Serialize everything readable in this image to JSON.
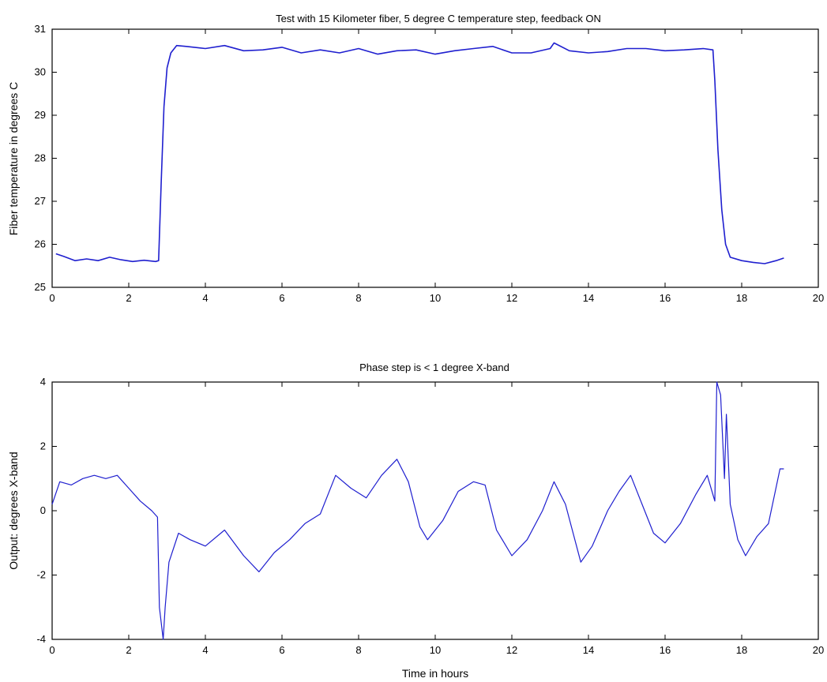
{
  "chart_data": [
    {
      "type": "line",
      "title": "Test with 15 Kilometer fiber, 5 degree C temperature step, feedback ON",
      "xlabel": "",
      "ylabel": "Fiber temperature in degrees C",
      "xlim": [
        0,
        20
      ],
      "ylim": [
        25,
        31
      ],
      "xticks": [
        0,
        2,
        4,
        6,
        8,
        10,
        12,
        14,
        16,
        18,
        20
      ],
      "yticks": [
        25,
        26,
        27,
        28,
        29,
        30,
        31
      ],
      "grid": false,
      "line_color": "#1f1fcf",
      "series": [
        {
          "values": [
            [
              0.1,
              25.78
            ],
            [
              0.3,
              25.72
            ],
            [
              0.6,
              25.62
            ],
            [
              0.9,
              25.66
            ],
            [
              1.2,
              25.62
            ],
            [
              1.5,
              25.7
            ],
            [
              1.8,
              25.64
            ],
            [
              2.1,
              25.6
            ],
            [
              2.4,
              25.63
            ],
            [
              2.7,
              25.6
            ],
            [
              2.78,
              25.62
            ],
            [
              2.85,
              27.5
            ],
            [
              2.92,
              29.2
            ],
            [
              3.0,
              30.1
            ],
            [
              3.1,
              30.45
            ],
            [
              3.25,
              30.62
            ],
            [
              3.5,
              30.6
            ],
            [
              4.0,
              30.55
            ],
            [
              4.5,
              30.62
            ],
            [
              5.0,
              30.5
            ],
            [
              5.5,
              30.52
            ],
            [
              6.0,
              30.58
            ],
            [
              6.5,
              30.45
            ],
            [
              7.0,
              30.52
            ],
            [
              7.5,
              30.45
            ],
            [
              8.0,
              30.55
            ],
            [
              8.5,
              30.42
            ],
            [
              9.0,
              30.5
            ],
            [
              9.5,
              30.52
            ],
            [
              10.0,
              30.42
            ],
            [
              10.5,
              30.5
            ],
            [
              11.0,
              30.55
            ],
            [
              11.5,
              30.6
            ],
            [
              12.0,
              30.45
            ],
            [
              12.5,
              30.45
            ],
            [
              13.0,
              30.55
            ],
            [
              13.1,
              30.68
            ],
            [
              13.5,
              30.5
            ],
            [
              14.0,
              30.45
            ],
            [
              14.5,
              30.48
            ],
            [
              15.0,
              30.55
            ],
            [
              15.5,
              30.55
            ],
            [
              16.0,
              30.5
            ],
            [
              16.5,
              30.52
            ],
            [
              17.0,
              30.55
            ],
            [
              17.25,
              30.52
            ],
            [
              17.3,
              29.8
            ],
            [
              17.38,
              28.2
            ],
            [
              17.48,
              26.8
            ],
            [
              17.58,
              26.0
            ],
            [
              17.7,
              25.7
            ],
            [
              18.0,
              25.62
            ],
            [
              18.3,
              25.58
            ],
            [
              18.6,
              25.55
            ],
            [
              18.9,
              25.62
            ],
            [
              19.1,
              25.68
            ]
          ]
        }
      ]
    },
    {
      "type": "line",
      "title": "Phase step is < 1 degree X-band",
      "xlabel": "Time in hours",
      "ylabel": "Output: degrees X-band",
      "xlim": [
        0,
        20
      ],
      "ylim": [
        -4,
        4
      ],
      "xticks": [
        0,
        2,
        4,
        6,
        8,
        10,
        12,
        14,
        16,
        18,
        20
      ],
      "yticks": [
        -4,
        -2,
        0,
        2,
        4
      ],
      "grid": false,
      "line_color": "#1f1fcf",
      "series": [
        {
          "values": [
            [
              0.0,
              0.2
            ],
            [
              0.2,
              0.9
            ],
            [
              0.5,
              0.8
            ],
            [
              0.8,
              1.0
            ],
            [
              1.1,
              1.1
            ],
            [
              1.4,
              1.0
            ],
            [
              1.7,
              1.1
            ],
            [
              2.0,
              0.7
            ],
            [
              2.3,
              0.3
            ],
            [
              2.6,
              0.0
            ],
            [
              2.75,
              -0.2
            ],
            [
              2.8,
              -3.0
            ],
            [
              2.9,
              -4.0
            ],
            [
              2.95,
              -3.0
            ],
            [
              3.05,
              -1.6
            ],
            [
              3.3,
              -0.7
            ],
            [
              3.6,
              -0.9
            ],
            [
              4.0,
              -1.1
            ],
            [
              4.5,
              -0.6
            ],
            [
              5.0,
              -1.4
            ],
            [
              5.4,
              -1.9
            ],
            [
              5.8,
              -1.3
            ],
            [
              6.2,
              -0.9
            ],
            [
              6.6,
              -0.4
            ],
            [
              7.0,
              -0.1
            ],
            [
              7.4,
              1.1
            ],
            [
              7.8,
              0.7
            ],
            [
              8.2,
              0.4
            ],
            [
              8.6,
              1.1
            ],
            [
              9.0,
              1.6
            ],
            [
              9.3,
              0.9
            ],
            [
              9.6,
              -0.5
            ],
            [
              9.8,
              -0.9
            ],
            [
              10.2,
              -0.3
            ],
            [
              10.6,
              0.6
            ],
            [
              11.0,
              0.9
            ],
            [
              11.3,
              0.8
            ],
            [
              11.6,
              -0.6
            ],
            [
              12.0,
              -1.4
            ],
            [
              12.4,
              -0.9
            ],
            [
              12.8,
              0.0
            ],
            [
              13.1,
              0.9
            ],
            [
              13.4,
              0.2
            ],
            [
              13.8,
              -1.6
            ],
            [
              14.1,
              -1.1
            ],
            [
              14.5,
              0.0
            ],
            [
              14.8,
              0.6
            ],
            [
              15.1,
              1.1
            ],
            [
              15.4,
              0.2
            ],
            [
              15.7,
              -0.7
            ],
            [
              16.0,
              -1.0
            ],
            [
              16.4,
              -0.4
            ],
            [
              16.8,
              0.5
            ],
            [
              17.1,
              1.1
            ],
            [
              17.3,
              0.3
            ],
            [
              17.35,
              4.0
            ],
            [
              17.45,
              3.6
            ],
            [
              17.55,
              1.0
            ],
            [
              17.6,
              3.0
            ],
            [
              17.7,
              0.2
            ],
            [
              17.9,
              -0.9
            ],
            [
              18.1,
              -1.4
            ],
            [
              18.4,
              -0.8
            ],
            [
              18.7,
              -0.4
            ],
            [
              19.0,
              1.3
            ],
            [
              19.1,
              1.3
            ]
          ]
        }
      ]
    }
  ]
}
